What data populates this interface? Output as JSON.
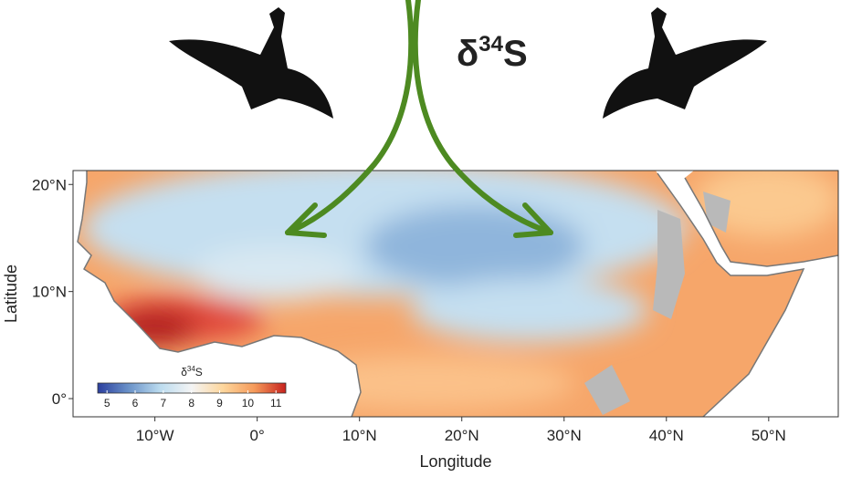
{
  "map": {
    "title": {
      "base": "δ",
      "sup": "34",
      "tail": "S"
    },
    "x_label": "Longitude",
    "y_label": "Latitude",
    "xlim": [
      -18,
      56.8
    ],
    "ylim": [
      -1.7,
      21.3
    ],
    "xticks": [
      {
        "value": -10,
        "label": "10°W"
      },
      {
        "value": 0,
        "label": "0°"
      },
      {
        "value": 10,
        "label": "10°N"
      },
      {
        "value": 20,
        "label": "20°N"
      },
      {
        "value": 30,
        "label": "30°N"
      },
      {
        "value": 40,
        "label": "40°N"
      },
      {
        "value": 50,
        "label": "50°N"
      }
    ],
    "yticks": [
      {
        "value": 20,
        "label": "20°N"
      },
      {
        "value": 10,
        "label": "10°N"
      },
      {
        "value": 0,
        "label": "0°"
      }
    ],
    "legend": {
      "title": {
        "base": "δ",
        "sup": "34",
        "tail": "S"
      },
      "range": [
        4.67,
        11.35
      ],
      "ticks": [
        5,
        6,
        7,
        8,
        9,
        10,
        11
      ],
      "colors": [
        "#2b3f9e",
        "#6b93c9",
        "#bcdcef",
        "#f4f4f4",
        "#fdd69c",
        "#f59a5a",
        "#c7221e"
      ]
    }
  }
}
